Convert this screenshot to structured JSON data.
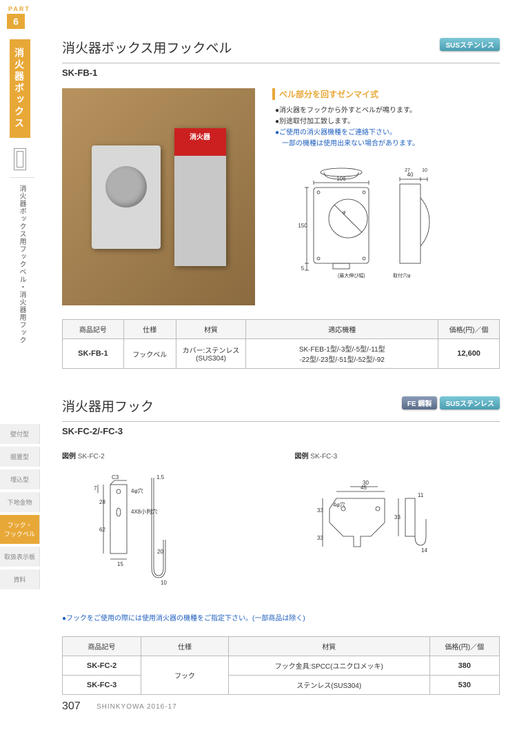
{
  "part": {
    "label": "PART",
    "num": "6"
  },
  "category": {
    "main": "消火器ボックス",
    "sub": "消火器ボックス用フックベル・消火器用フック"
  },
  "nav": [
    {
      "label": "壁付型",
      "active": false
    },
    {
      "label": "据置型",
      "active": false
    },
    {
      "label": "埋込型",
      "active": false
    },
    {
      "label": "下地金物",
      "active": false
    },
    {
      "label": "フック・\nフックベル",
      "active": true
    },
    {
      "label": "取扱表示板",
      "active": false
    },
    {
      "label": "資料",
      "active": false
    }
  ],
  "sec1": {
    "title": "消火器ボックス用フックベル",
    "sub": "SK-FB-1",
    "badges": [
      {
        "text": "SUSステンレス",
        "cls": "badge-sus"
      }
    ],
    "info_head": "ベル部分を回すゼンマイ式",
    "bullets": [
      {
        "text": "●消火器をフックから外すとベルが鳴ります。",
        "blue": false
      },
      {
        "text": "●別途取付加工致します。",
        "blue": false
      },
      {
        "text": "●ご使用の消火器機種をご連絡下さい。",
        "blue": true
      },
      {
        "text": "　一部の機種は使用出来ない場合があります。",
        "blue": true
      }
    ],
    "diagram": {
      "w": 106,
      "h": 150,
      "side_w": 40,
      "side_d1": 27,
      "side_d2": 10,
      "labels": {
        "ext": "(最大伸び幅)",
        "hole": "取付穴φ"
      }
    },
    "table": {
      "headers": [
        "商品記号",
        "仕様",
        "材質",
        "適応機種",
        "価格(円)／個"
      ],
      "rows": [
        [
          "SK-FB-1",
          "フックベル",
          "カバー:ステンレス\n(SUS304)",
          "SK-FEB-1型/-3型/-5型/-11型\n-22型/-23型/-51型/-52型/-92",
          "12,600"
        ]
      ]
    }
  },
  "sec2": {
    "title": "消火器用フック",
    "sub": "SK-FC-2/-FC-3",
    "badges": [
      {
        "text": "FE 鋼製",
        "cls": "badge-fe"
      },
      {
        "text": "SUSステンレス",
        "cls": "badge-sus"
      }
    ],
    "figs": [
      {
        "label_prefix": "図例",
        "label": "SK-FC-2",
        "dims": {
          "c3": "C3",
          "hole4": "4φ穴",
          "hole48": "4X8小判穴",
          "t": "1.5",
          "h1": 7,
          "h2": 28,
          "h3": 62,
          "h4": 20,
          "w": 15,
          "hook": 10
        }
      },
      {
        "label_prefix": "図例",
        "label": "SK-FC-3",
        "dims": {
          "hole4": "4φ穴",
          "w1": 45,
          "w2": 30,
          "t": 11,
          "h1": 33,
          "h2": 33,
          "hook": 14
        }
      }
    ],
    "note": "●フックをご使用の際には使用消火器の機種をご指定下さい。(一部商品は除く)",
    "table": {
      "headers": [
        "商品記号",
        "仕様",
        "材質",
        "価格(円)／個"
      ],
      "rows": [
        [
          "SK-FC-2",
          "フック",
          "フック金具:SPCC(ユニクロメッキ)",
          "380"
        ],
        [
          "SK-FC-3",
          "",
          "ステンレス(SUS304)",
          "530"
        ]
      ]
    }
  },
  "page": {
    "num": "307",
    "footer": "SHINKYOWA 2016-17"
  },
  "ext_label": "消火器"
}
